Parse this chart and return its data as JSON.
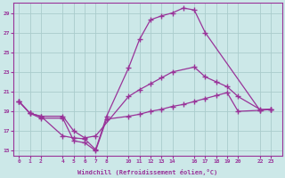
{
  "xlabel": "Windchill (Refroidissement éolien,°C)",
  "background_color": "#cce8e8",
  "grid_color": "#aacccc",
  "line_color": "#993399",
  "x_ticks": [
    0,
    1,
    2,
    4,
    5,
    6,
    7,
    8,
    10,
    11,
    12,
    13,
    14,
    16,
    17,
    18,
    19,
    20,
    22,
    23
  ],
  "ylim": [
    14.5,
    30.0
  ],
  "xlim": [
    -0.5,
    24.0
  ],
  "yticks": [
    15,
    17,
    19,
    21,
    23,
    25,
    27,
    29
  ],
  "line1_x": [
    0,
    1,
    2,
    4,
    5,
    6,
    7,
    8,
    10,
    11,
    12,
    13,
    14,
    15,
    16,
    17,
    22,
    23
  ],
  "line1_y": [
    20.0,
    18.8,
    18.5,
    16.5,
    16.3,
    16.2,
    15.1,
    18.5,
    23.4,
    26.3,
    28.3,
    28.7,
    29.0,
    29.5,
    29.3,
    27.0,
    19.1,
    19.2
  ],
  "line2_x": [
    0,
    1,
    2,
    4,
    5,
    6,
    7,
    10,
    11,
    12,
    13,
    14,
    16,
    17,
    18,
    19,
    20,
    22,
    23
  ],
  "line2_y": [
    20.0,
    18.8,
    18.5,
    18.5,
    17.0,
    16.3,
    16.5,
    20.5,
    21.2,
    21.8,
    22.4,
    23.0,
    23.5,
    22.5,
    22.0,
    21.5,
    20.5,
    19.2,
    19.2
  ],
  "line3_x": [
    0,
    1,
    2,
    4,
    5,
    6,
    7,
    8,
    10,
    11,
    12,
    13,
    14,
    15,
    16,
    17,
    18,
    19,
    20,
    22,
    23
  ],
  "line3_y": [
    20.0,
    18.8,
    18.3,
    18.3,
    16.0,
    15.8,
    15.0,
    18.2,
    18.5,
    18.7,
    19.0,
    19.2,
    19.5,
    19.7,
    20.0,
    20.3,
    20.6,
    20.9,
    19.0,
    19.1,
    19.2
  ]
}
